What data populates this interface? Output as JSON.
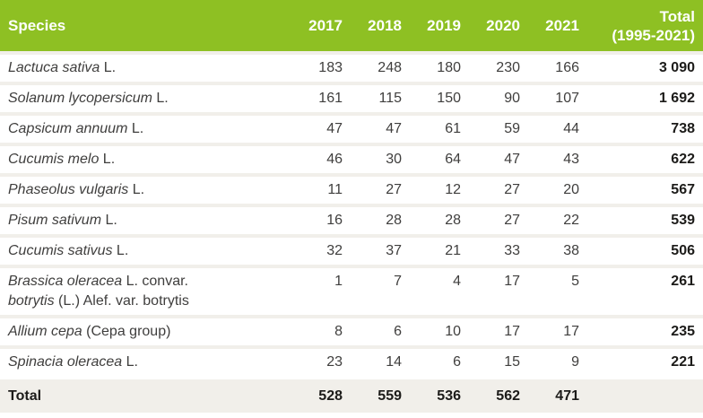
{
  "chart_data": {
    "type": "table",
    "title": "",
    "columns": [
      "Species",
      "2017",
      "2018",
      "2019",
      "2020",
      "2021",
      "Total (1995-2021)"
    ],
    "rows": [
      [
        "Lactuca sativa L.",
        183,
        248,
        180,
        230,
        166,
        3090
      ],
      [
        "Solanum lycopersicum L.",
        161,
        115,
        150,
        90,
        107,
        1692
      ],
      [
        "Capsicum annuum L.",
        47,
        47,
        61,
        59,
        44,
        738
      ],
      [
        "Cucumis melo L.",
        46,
        30,
        64,
        47,
        43,
        622
      ],
      [
        "Phaseolus vulgaris L.",
        11,
        27,
        12,
        27,
        20,
        567
      ],
      [
        "Pisum sativum L.",
        16,
        28,
        28,
        27,
        22,
        539
      ],
      [
        "Cucumis sativus L.",
        32,
        37,
        21,
        33,
        38,
        506
      ],
      [
        "Brassica oleracea L. convar. botrytis (L.) Alef. var. botrytis",
        1,
        7,
        4,
        17,
        5,
        261
      ],
      [
        "Allium cepa (Cepa group)",
        8,
        6,
        10,
        17,
        17,
        235
      ],
      [
        "Spinacia oleracea L.",
        23,
        14,
        6,
        15,
        9,
        221
      ],
      [
        "Total",
        528,
        559,
        536,
        562,
        471,
        null
      ]
    ]
  },
  "table": {
    "header": {
      "species": "Species",
      "years": [
        "2017",
        "2018",
        "2019",
        "2020",
        "2021"
      ],
      "total_line1": "Total",
      "total_line2": "(1995-2021)"
    },
    "rows": [
      {
        "name_lines": [
          [
            {
              "t": "Lactuca sativa",
              "i": 1
            },
            {
              "t": " L.",
              "i": 0
            }
          ]
        ],
        "values": [
          "183",
          "248",
          "180",
          "230",
          "166"
        ],
        "total": "3 090"
      },
      {
        "name_lines": [
          [
            {
              "t": "Solanum lycopersicum",
              "i": 1
            },
            {
              "t": " L.",
              "i": 0
            }
          ]
        ],
        "values": [
          "161",
          "115",
          "150",
          "90",
          "107"
        ],
        "total": "1 692"
      },
      {
        "name_lines": [
          [
            {
              "t": "Capsicum annuum",
              "i": 1
            },
            {
              "t": " L.",
              "i": 0
            }
          ]
        ],
        "values": [
          "47",
          "47",
          "61",
          "59",
          "44"
        ],
        "total": "738"
      },
      {
        "name_lines": [
          [
            {
              "t": "Cucumis melo",
              "i": 1
            },
            {
              "t": " L.",
              "i": 0
            }
          ]
        ],
        "values": [
          "46",
          "30",
          "64",
          "47",
          "43"
        ],
        "total": "622"
      },
      {
        "name_lines": [
          [
            {
              "t": "Phaseolus vulgaris",
              "i": 1
            },
            {
              "t": " L.",
              "i": 0
            }
          ]
        ],
        "values": [
          "11",
          "27",
          "12",
          "27",
          "20"
        ],
        "total": "567"
      },
      {
        "name_lines": [
          [
            {
              "t": "Pisum sativum",
              "i": 1
            },
            {
              "t": " L.",
              "i": 0
            }
          ]
        ],
        "values": [
          "16",
          "28",
          "28",
          "27",
          "22"
        ],
        "total": "539"
      },
      {
        "name_lines": [
          [
            {
              "t": "Cucumis sativus",
              "i": 1
            },
            {
              "t": " L.",
              "i": 0
            }
          ]
        ],
        "values": [
          "32",
          "37",
          "21",
          "33",
          "38"
        ],
        "total": "506"
      },
      {
        "name_lines": [
          [
            {
              "t": "Brassica oleracea",
              "i": 1
            },
            {
              "t": " L. convar.",
              "i": 0
            }
          ],
          [
            {
              "t": "botrytis",
              "i": 1
            },
            {
              "t": " (L.) Alef. var. botrytis",
              "i": 0
            }
          ]
        ],
        "values": [
          "1",
          "7",
          "4",
          "17",
          "5"
        ],
        "total": "261"
      },
      {
        "name_lines": [
          [
            {
              "t": "Allium cepa",
              "i": 1
            },
            {
              "t": " (Cepa group)",
              "i": 0
            }
          ]
        ],
        "values": [
          "8",
          "6",
          "10",
          "17",
          "17"
        ],
        "total": "235"
      },
      {
        "name_lines": [
          [
            {
              "t": "Spinacia oleracea",
              "i": 1
            },
            {
              "t": " L.",
              "i": 0
            }
          ]
        ],
        "values": [
          "23",
          "14",
          "6",
          "15",
          "9"
        ],
        "total": "221"
      }
    ],
    "footer": {
      "label": "Total",
      "values": [
        "528",
        "559",
        "536",
        "562",
        "471"
      ],
      "total": ""
    }
  },
  "colors": {
    "header_green": "#8EC023",
    "header_text": "#FFFFFF",
    "separator": "#F1EFEA",
    "footer_background": "#F1EFEA",
    "body_text": "#3F3E3D",
    "total_text": "#1C1B19"
  }
}
